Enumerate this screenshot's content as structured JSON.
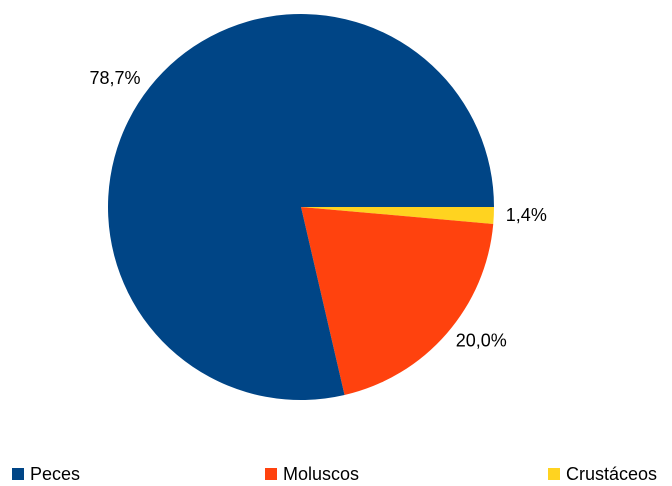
{
  "chart_data": {
    "type": "pie",
    "categories": [
      "Peces",
      "Moluscos",
      "Crustáceos"
    ],
    "values": [
      78.7,
      20.0,
      1.4
    ],
    "labels": [
      "78,7%",
      "20,0%",
      "1,4%"
    ],
    "colors": [
      "#004586",
      "#ff420e",
      "#ffd320"
    ],
    "legend_position": "bottom",
    "title": ""
  }
}
